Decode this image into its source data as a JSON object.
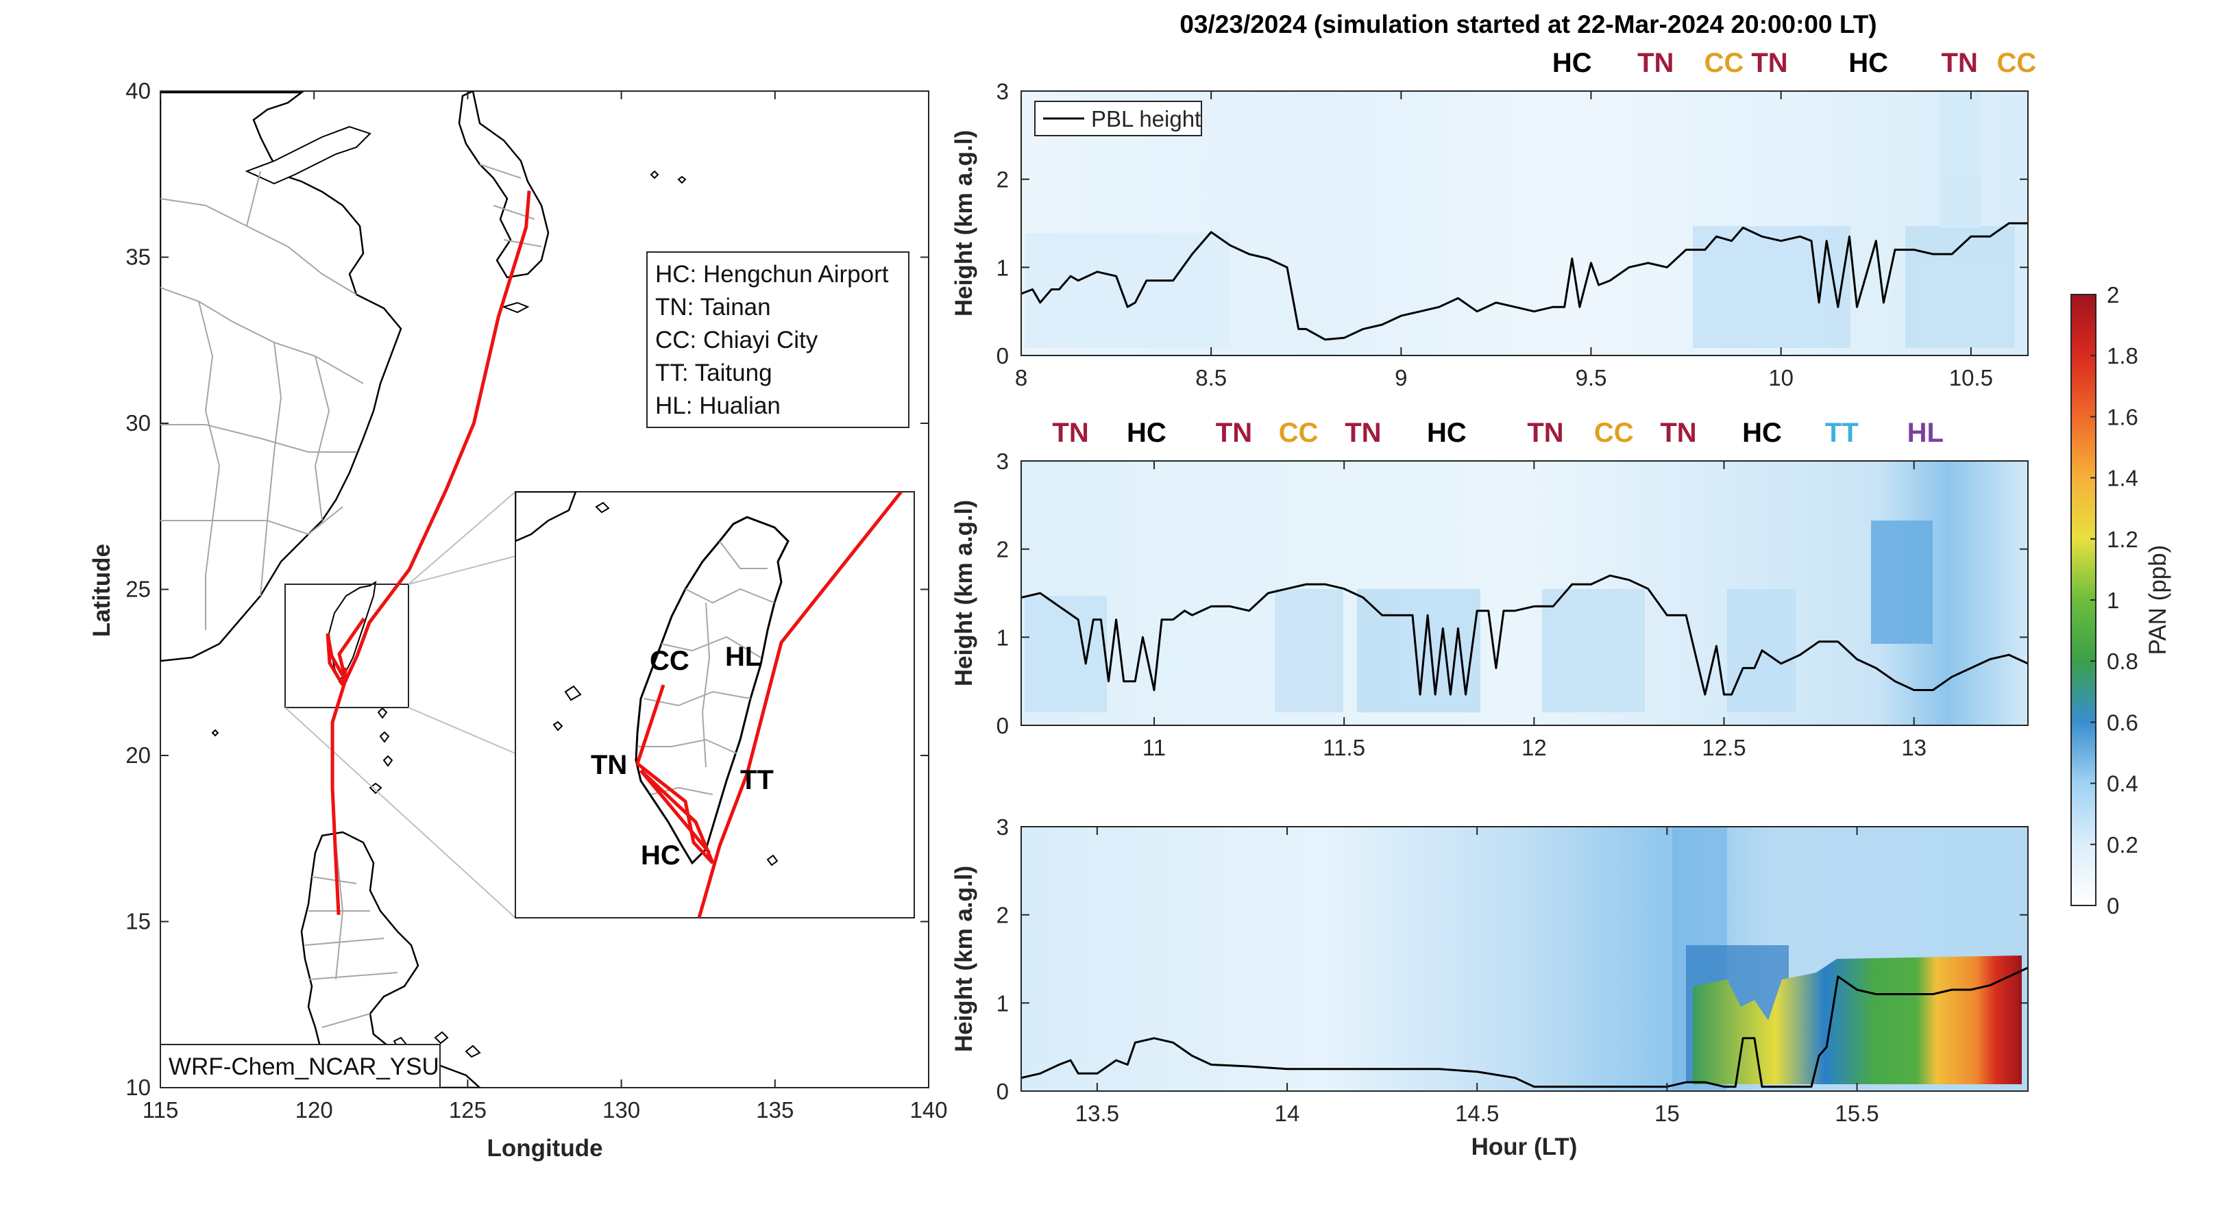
{
  "figure": {
    "title": "03/23/2024 (simulation started at 22-Mar-2024 20:00:00 LT)"
  },
  "map": {
    "xlabel": "Longitude",
    "ylabel": "Latitude",
    "xlim": [
      115,
      140
    ],
    "ylim": [
      10,
      40
    ],
    "xticks": [
      "115",
      "120",
      "125",
      "130",
      "135",
      "140"
    ],
    "yticks": [
      "10",
      "15",
      "20",
      "25",
      "30",
      "35",
      "40"
    ],
    "model_label": "WRF-Chem_NCAR_YSU",
    "track_color": "#ee1111",
    "legend": [
      "HC: Hengchun Airport",
      "TN: Tainan",
      "CC: Chiayi City",
      "TT: Taitung",
      "HL: Hualian"
    ],
    "track_lonlat": [
      [
        127.0,
        37.0
      ],
      [
        126.9,
        35.9
      ],
      [
        126.0,
        33.2
      ],
      [
        125.2,
        30.0
      ],
      [
        124.3,
        28.0
      ],
      [
        123.1,
        25.6
      ],
      [
        121.8,
        24.0
      ],
      [
        121.4,
        23.0
      ],
      [
        121.0,
        22.2
      ],
      [
        120.6,
        21.0
      ],
      [
        120.6,
        19.0
      ],
      [
        120.7,
        17.0
      ],
      [
        120.8,
        15.2
      ]
    ],
    "inset": {
      "sites": [
        {
          "code": "CC",
          "color": "#e0a020"
        },
        {
          "code": "HL",
          "color": "#7b3f9e"
        },
        {
          "code": "TN",
          "color": "#a01c3c"
        },
        {
          "code": "TT",
          "color": "#40b0e0"
        },
        {
          "code": "HC",
          "color": "#000000"
        }
      ]
    }
  },
  "chart_data": [
    {
      "type": "heatmap",
      "panel": 1,
      "xlim": [
        8,
        10.65
      ],
      "ylim": [
        0,
        3
      ],
      "xticks": [
        "8",
        "8.5",
        "9",
        "9.5",
        "10",
        "10.5"
      ],
      "yticks": [
        "0",
        "1",
        "2",
        "3"
      ],
      "ylabel": "Height (km a.g.l)",
      "legend": "PBL height",
      "legend_placement": "top-left",
      "site_labels": [
        {
          "code": "HC",
          "x": 9.45,
          "color": "#000000"
        },
        {
          "code": "TN",
          "x": 9.67,
          "color": "#a01c3c"
        },
        {
          "code": "CC",
          "x": 9.85,
          "color": "#e0a020"
        },
        {
          "code": "TN",
          "x": 9.97,
          "color": "#a01c3c"
        },
        {
          "code": "HC",
          "x": 10.23,
          "color": "#000000"
        },
        {
          "code": "TN",
          "x": 10.47,
          "color": "#a01c3c"
        },
        {
          "code": "CC",
          "x": 10.62,
          "color": "#e0a020"
        }
      ],
      "pbl_height": {
        "x": [
          8.0,
          8.03,
          8.05,
          8.08,
          8.1,
          8.13,
          8.15,
          8.2,
          8.25,
          8.28,
          8.3,
          8.33,
          8.4,
          8.45,
          8.5,
          8.55,
          8.6,
          8.65,
          8.7,
          8.73,
          8.75,
          8.8,
          8.85,
          8.9,
          8.95,
          9.0,
          9.05,
          9.1,
          9.15,
          9.2,
          9.25,
          9.3,
          9.35,
          9.4,
          9.43,
          9.45,
          9.47,
          9.5,
          9.52,
          9.55,
          9.6,
          9.65,
          9.7,
          9.75,
          9.8,
          9.83,
          9.87,
          9.9,
          9.95,
          10.0,
          10.05,
          10.08,
          10.1,
          10.12,
          10.15,
          10.18,
          10.2,
          10.25,
          10.27,
          10.3,
          10.35,
          10.4,
          10.45,
          10.5,
          10.55,
          10.6,
          10.65
        ],
        "y": [
          0.7,
          0.75,
          0.6,
          0.75,
          0.75,
          0.9,
          0.85,
          0.95,
          0.9,
          0.55,
          0.6,
          0.85,
          0.85,
          1.15,
          1.4,
          1.25,
          1.15,
          1.1,
          1.0,
          0.3,
          0.3,
          0.18,
          0.2,
          0.3,
          0.35,
          0.45,
          0.5,
          0.55,
          0.65,
          0.5,
          0.6,
          0.55,
          0.5,
          0.55,
          0.55,
          1.1,
          0.55,
          1.05,
          0.8,
          0.85,
          1.0,
          1.05,
          1.0,
          1.2,
          1.2,
          1.35,
          1.3,
          1.45,
          1.35,
          1.3,
          1.35,
          1.3,
          0.6,
          1.3,
          0.55,
          1.35,
          0.55,
          1.3,
          0.6,
          1.2,
          1.2,
          1.15,
          1.15,
          1.35,
          1.35,
          1.5,
          1.5
        ]
      }
    },
    {
      "type": "heatmap",
      "panel": 2,
      "xlim": [
        10.65,
        13.3
      ],
      "ylim": [
        0,
        3
      ],
      "xticks": [
        "11",
        "11.5",
        "12",
        "12.5",
        "13"
      ],
      "yticks": [
        "0",
        "1",
        "2",
        "3"
      ],
      "ylabel": "Height (km a.g.l)",
      "site_labels": [
        {
          "code": "TN",
          "x": 10.78,
          "color": "#a01c3c"
        },
        {
          "code": "HC",
          "x": 10.98,
          "color": "#000000"
        },
        {
          "code": "TN",
          "x": 11.21,
          "color": "#a01c3c"
        },
        {
          "code": "CC",
          "x": 11.38,
          "color": "#e0a020"
        },
        {
          "code": "TN",
          "x": 11.55,
          "color": "#a01c3c"
        },
        {
          "code": "HC",
          "x": 11.77,
          "color": "#000000"
        },
        {
          "code": "TN",
          "x": 12.03,
          "color": "#a01c3c"
        },
        {
          "code": "CC",
          "x": 12.21,
          "color": "#e0a020"
        },
        {
          "code": "TN",
          "x": 12.38,
          "color": "#a01c3c"
        },
        {
          "code": "HC",
          "x": 12.6,
          "color": "#000000"
        },
        {
          "code": "TT",
          "x": 12.81,
          "color": "#40b0e0"
        },
        {
          "code": "HL",
          "x": 13.03,
          "color": "#7b3f9e"
        }
      ],
      "pbl_height": {
        "x": [
          10.65,
          10.7,
          10.75,
          10.8,
          10.82,
          10.84,
          10.86,
          10.88,
          10.9,
          10.92,
          10.95,
          10.97,
          11.0,
          11.02,
          11.05,
          11.08,
          11.1,
          11.15,
          11.2,
          11.25,
          11.3,
          11.35,
          11.4,
          11.45,
          11.5,
          11.55,
          11.6,
          11.65,
          11.68,
          11.7,
          11.72,
          11.74,
          11.76,
          11.78,
          11.8,
          11.82,
          11.85,
          11.88,
          11.9,
          11.92,
          11.95,
          12.0,
          12.05,
          12.1,
          12.15,
          12.2,
          12.25,
          12.3,
          12.35,
          12.4,
          12.45,
          12.48,
          12.5,
          12.52,
          12.55,
          12.58,
          12.6,
          12.65,
          12.7,
          12.75,
          12.8,
          12.85,
          12.9,
          12.95,
          13.0,
          13.05,
          13.1,
          13.15,
          13.2,
          13.25,
          13.3
        ],
        "y": [
          1.45,
          1.5,
          1.35,
          1.2,
          0.7,
          1.2,
          1.2,
          0.5,
          1.2,
          0.5,
          0.5,
          1.0,
          0.4,
          1.2,
          1.2,
          1.3,
          1.25,
          1.35,
          1.35,
          1.3,
          1.5,
          1.55,
          1.6,
          1.6,
          1.55,
          1.45,
          1.25,
          1.25,
          1.25,
          0.35,
          1.25,
          0.35,
          1.1,
          0.35,
          1.1,
          0.35,
          1.3,
          1.3,
          0.65,
          1.3,
          1.3,
          1.35,
          1.35,
          1.6,
          1.6,
          1.7,
          1.65,
          1.55,
          1.25,
          1.25,
          0.35,
          0.9,
          0.35,
          0.35,
          0.65,
          0.65,
          0.85,
          0.7,
          0.8,
          0.95,
          0.95,
          0.75,
          0.65,
          0.5,
          0.4,
          0.4,
          0.55,
          0.65,
          0.75,
          0.8,
          0.7
        ]
      }
    },
    {
      "type": "heatmap",
      "panel": 3,
      "xlim": [
        13.3,
        15.95
      ],
      "ylim": [
        0,
        3
      ],
      "xticks": [
        "13.5",
        "14",
        "14.5",
        "15",
        "15.5"
      ],
      "yticks": [
        "0",
        "1",
        "2",
        "3"
      ],
      "ylabel": "Height (km a.g.l)",
      "xlabel": "Hour (LT)",
      "pbl_height": {
        "x": [
          13.3,
          13.35,
          13.4,
          13.43,
          13.45,
          13.5,
          13.55,
          13.58,
          13.6,
          13.65,
          13.7,
          13.75,
          13.8,
          13.9,
          14.0,
          14.1,
          14.2,
          14.3,
          14.4,
          14.5,
          14.6,
          14.65,
          14.7,
          14.8,
          14.9,
          15.0,
          15.05,
          15.1,
          15.15,
          15.18,
          15.2,
          15.23,
          15.25,
          15.3,
          15.35,
          15.38,
          15.4,
          15.42,
          15.45,
          15.5,
          15.55,
          15.6,
          15.65,
          15.7,
          15.75,
          15.8,
          15.85,
          15.9,
          15.95
        ],
        "y": [
          0.15,
          0.2,
          0.3,
          0.35,
          0.2,
          0.2,
          0.35,
          0.3,
          0.55,
          0.6,
          0.55,
          0.4,
          0.3,
          0.28,
          0.25,
          0.25,
          0.25,
          0.25,
          0.25,
          0.22,
          0.15,
          0.05,
          0.05,
          0.05,
          0.05,
          0.05,
          0.1,
          0.1,
          0.05,
          0.05,
          0.6,
          0.6,
          0.05,
          0.05,
          0.05,
          0.05,
          0.4,
          0.5,
          1.3,
          1.15,
          1.1,
          1.1,
          1.1,
          1.1,
          1.15,
          1.15,
          1.2,
          1.3,
          1.4
        ]
      }
    }
  ],
  "colorbar": {
    "label": "PAN (ppb)",
    "ticks": [
      "0",
      "0.2",
      "0.4",
      "0.6",
      "0.8",
      "1",
      "1.2",
      "1.4",
      "1.6",
      "1.8",
      "2"
    ]
  }
}
